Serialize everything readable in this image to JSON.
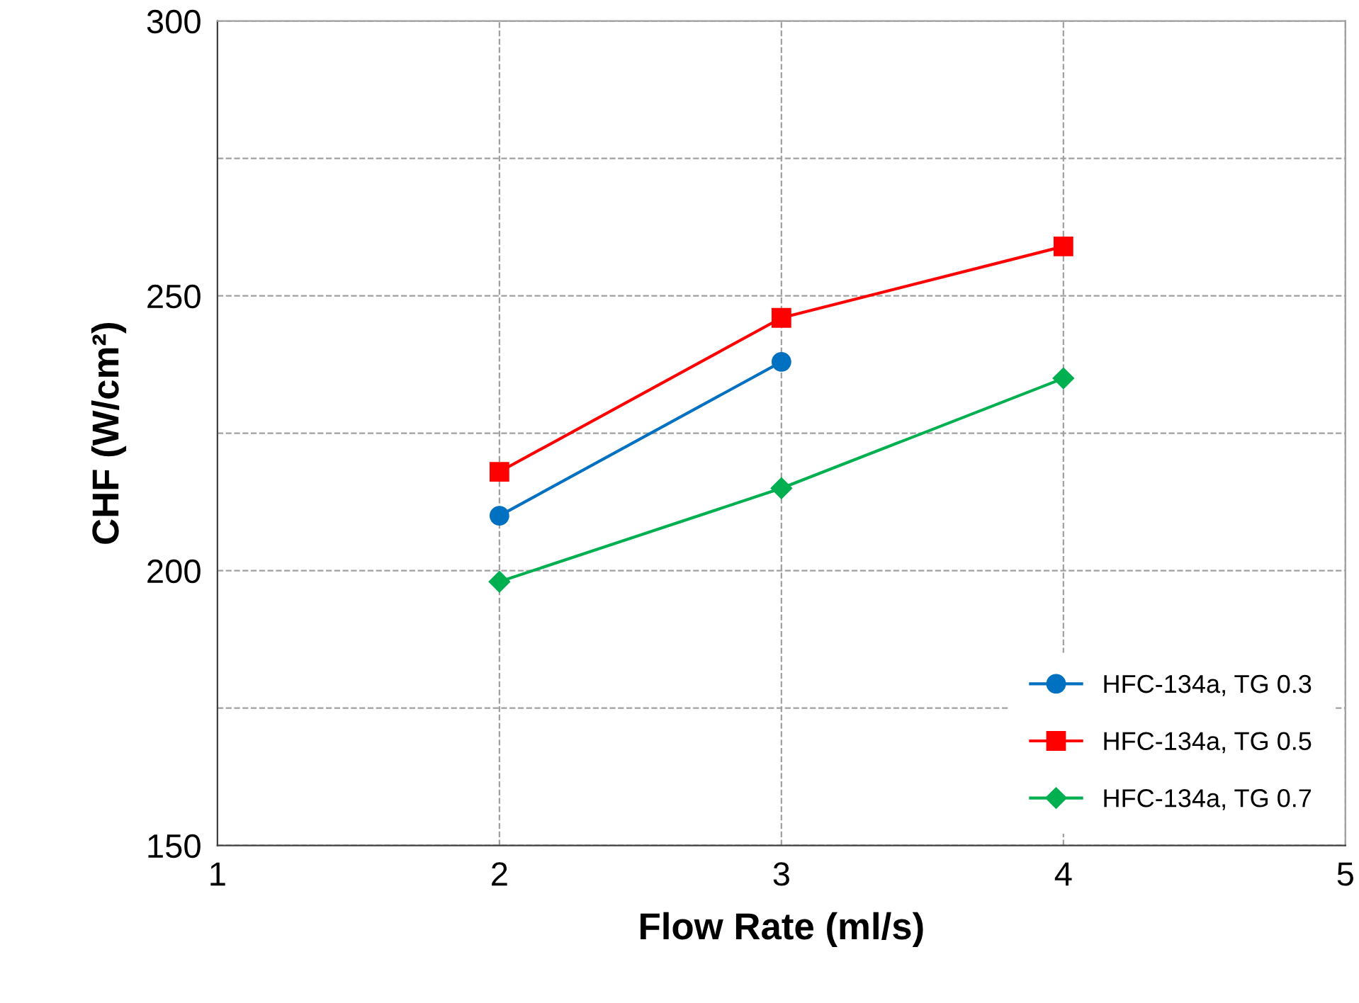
{
  "chart_data": {
    "type": "line",
    "xlabel": "Flow Rate (ml/s)",
    "ylabel": "CHF (W/cm²)",
    "x": [
      2,
      3,
      4
    ],
    "series": [
      {
        "name": "HFC-134a, TG 0.3",
        "color": "#0070c0",
        "marker": "circle",
        "values": [
          210,
          238,
          null
        ]
      },
      {
        "name": "HFC-134a, TG 0.5",
        "color": "#ff0000",
        "marker": "square",
        "values": [
          218,
          246,
          259
        ]
      },
      {
        "name": "HFC-134a, TG 0.7",
        "color": "#00b050",
        "marker": "diamond",
        "values": [
          198,
          215,
          235
        ]
      }
    ],
    "xlim": [
      1,
      5
    ],
    "xticks": [
      1,
      2,
      3,
      4,
      5
    ],
    "ylim": [
      150,
      300
    ],
    "yticks": [
      150,
      {
        "value": 175,
        "label": null
      },
      200,
      {
        "value": 225,
        "label": null
      },
      250,
      {
        "value": 275,
        "label": null
      },
      300
    ],
    "grid": true,
    "legend": "bottom right",
    "line_style": "solid"
  }
}
